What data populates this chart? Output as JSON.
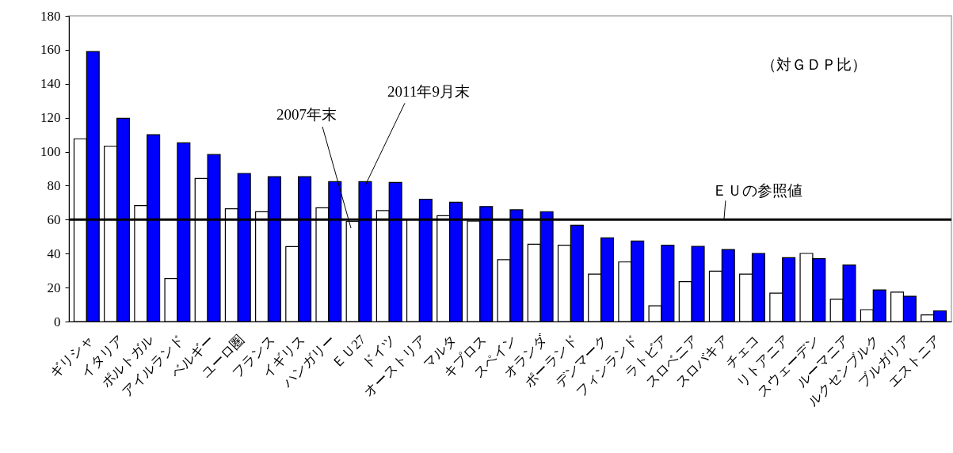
{
  "chart_data": {
    "type": "bar",
    "ylabel": "（対ＧＤＰ比）",
    "categories": [
      "ギリシャ",
      "イタリア",
      "ポルトガル",
      "アイルランド",
      "ベルギー",
      "ユーロ圏",
      "フランス",
      "イギリス",
      "ハンガリー",
      "ＥＵ27",
      "ドイツ",
      "オーストリア",
      "マルタ",
      "キプロス",
      "スペイン",
      "オランダ",
      "ポーランド",
      "デンマーク",
      "フィンランド",
      "ラトビア",
      "スロベニア",
      "スロバキア",
      "チェコ",
      "リトアニア",
      "スウェーデン",
      "ルーマニア",
      "ルクセンブルク",
      "ブルガリア",
      "エストニア"
    ],
    "series": [
      {
        "color": "#ffffff",
        "values": [
          107.6,
          103.3,
          68.3,
          25.4,
          84.2,
          66.4,
          64.6,
          44.1,
          67,
          59,
          65.3,
          60.4,
          62.3,
          59.2,
          36.4,
          45.5,
          44.9,
          27.9,
          35.1,
          9.3,
          23.5,
          29.7,
          27.9,
          16.7,
          40.1,
          13.1,
          7,
          17.3,
          3.9
        ]
      },
      {
        "color": "#0000ff",
        "values": [
          159,
          119.7,
          110,
          105.2,
          98.3,
          87.2,
          85.3,
          85.3,
          82.4,
          82.4,
          81.9,
          72,
          70.2,
          67.7,
          65.8,
          64.7,
          56.7,
          49.3,
          47.4,
          44.9,
          44.3,
          42.4,
          40.1,
          37.6,
          37,
          33.3,
          18.6,
          14.9,
          6.3
        ]
      }
    ],
    "ylim": [
      0,
      180
    ],
    "yticks": [
      0,
      20,
      40,
      60,
      80,
      100,
      120,
      140,
      160,
      180
    ],
    "ref_lines": [
      {
        "axis": "y",
        "value": 60,
        "label": "ＥＵの参照値",
        "color": "#000000"
      }
    ],
    "annotations": [
      "2007年末",
      {
        "text": "2011年9月末",
        "x": "ＥＵ27",
        "y": 82.4
      }
    ]
  }
}
